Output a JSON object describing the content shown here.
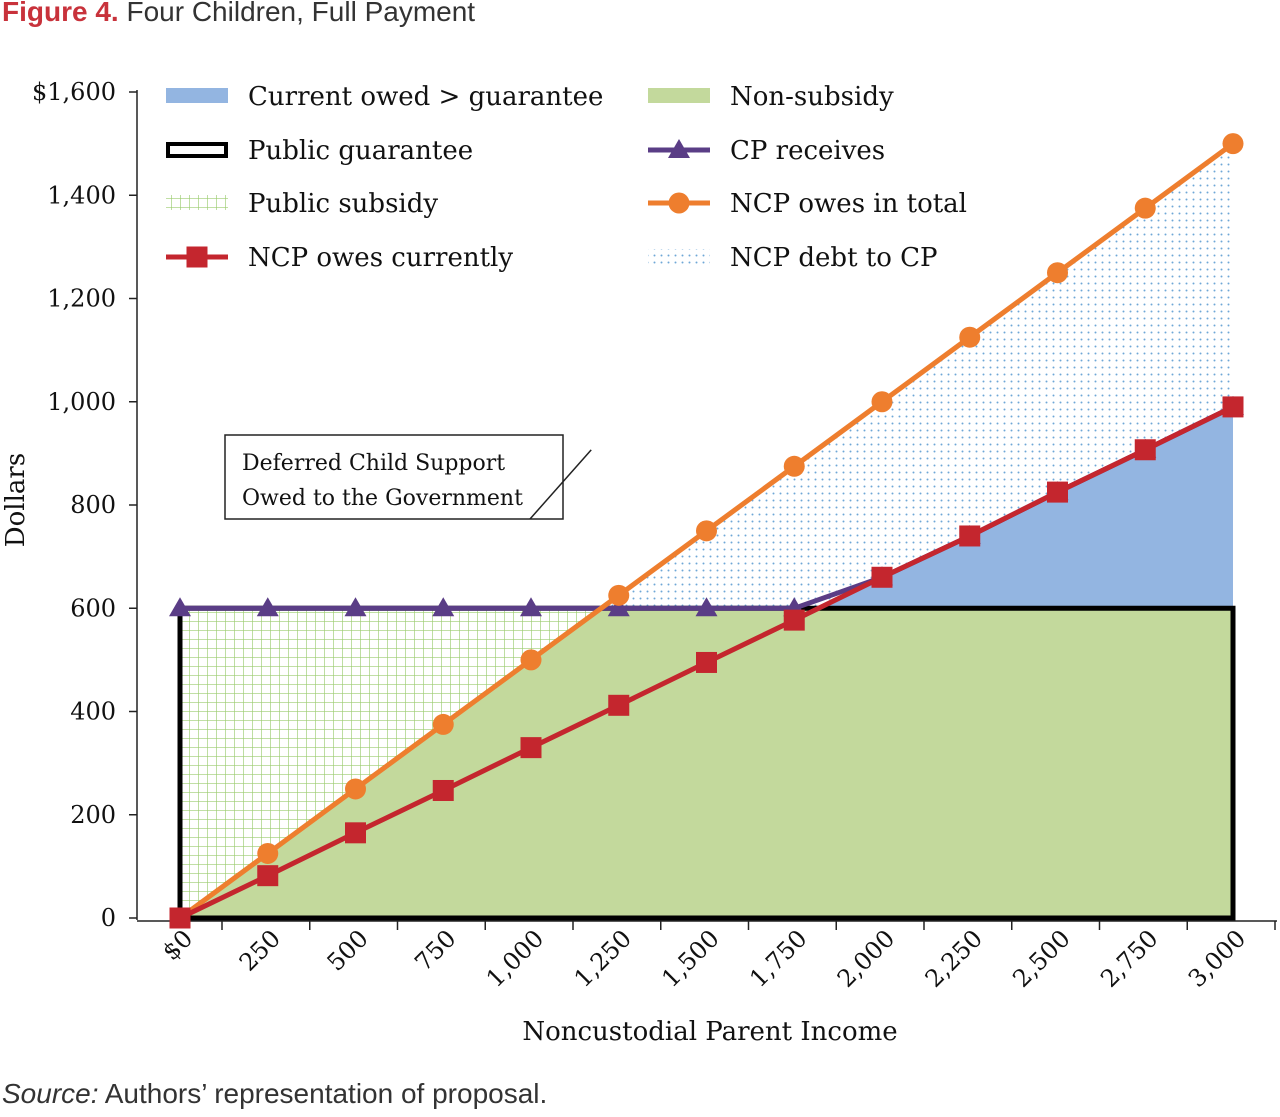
{
  "figure": {
    "label": "Figure 4.",
    "title": "Four Children, Full Payment",
    "source_label": "Source:",
    "source_text": "Authors’ representation of proposal."
  },
  "colors": {
    "current_owed_fill": "#93b5e1",
    "non_subsidy_fill": "#c3d99c",
    "subsidy_grid": "#9ccc6f",
    "debt_dots": "#6fa7d6",
    "cp_receives": "#5a3d86",
    "ncp_total": "#ee7e2e",
    "ncp_current": "#c4262e",
    "guarantee_outline": "#000000"
  },
  "chart_data": {
    "type": "line",
    "xlabel": "Noncustodial Parent Income",
    "ylabel": "Dollars",
    "xlim": [
      0,
      3000
    ],
    "ylim": [
      0,
      1600
    ],
    "x_ticks": [
      {
        "value": 0,
        "label": "$0"
      },
      {
        "value": 250,
        "label": "250"
      },
      {
        "value": 500,
        "label": "500"
      },
      {
        "value": 750,
        "label": "750"
      },
      {
        "value": 1000,
        "label": "1,000"
      },
      {
        "value": 1250,
        "label": "1,250"
      },
      {
        "value": 1500,
        "label": "1,500"
      },
      {
        "value": 1750,
        "label": "1,750"
      },
      {
        "value": 2000,
        "label": "2,000"
      },
      {
        "value": 2250,
        "label": "2,250"
      },
      {
        "value": 2500,
        "label": "2,500"
      },
      {
        "value": 2750,
        "label": "2,750"
      },
      {
        "value": 3000,
        "label": "3,000"
      }
    ],
    "y_ticks": [
      {
        "value": 0,
        "label": "0"
      },
      {
        "value": 200,
        "label": "200"
      },
      {
        "value": 400,
        "label": "400"
      },
      {
        "value": 600,
        "label": "600"
      },
      {
        "value": 800,
        "label": "800"
      },
      {
        "value": 1000,
        "label": "1,000"
      },
      {
        "value": 1200,
        "label": "1,200"
      },
      {
        "value": 1400,
        "label": "1,400"
      },
      {
        "value": 1600,
        "label": "$1,600"
      }
    ],
    "x": [
      0,
      250,
      500,
      750,
      1000,
      1250,
      1500,
      1750,
      2000,
      2250,
      2500,
      2750,
      3000
    ],
    "guarantee": 600,
    "series": [
      {
        "name": "CP receives",
        "key": "cp_receives",
        "marker": "triangle",
        "values": [
          600,
          600,
          600,
          600,
          600,
          600,
          600,
          600,
          660,
          740,
          825,
          907,
          990
        ]
      },
      {
        "name": "NCP owes in total",
        "key": "ncp_total",
        "marker": "circle",
        "values": [
          0,
          125,
          250,
          375,
          500,
          625,
          750,
          875,
          1000,
          1125,
          1250,
          1375,
          1500
        ]
      },
      {
        "name": "NCP owes currently",
        "key": "ncp_current",
        "marker": "square",
        "values": [
          0,
          82,
          165,
          247,
          330,
          412,
          495,
          577,
          660,
          740,
          825,
          907,
          990
        ]
      }
    ],
    "legend": [
      {
        "key": "current_owed",
        "label": "Current owed > guarantee",
        "swatch": "fill-blue"
      },
      {
        "key": "non_subsidy",
        "label": "Non-subsidy",
        "swatch": "fill-green"
      },
      {
        "key": "public_guarantee",
        "label": "Public guarantee",
        "swatch": "outline"
      },
      {
        "key": "cp_receives",
        "label": "CP receives",
        "swatch": "line-triangle"
      },
      {
        "key": "public_subsidy",
        "label": "Public subsidy",
        "swatch": "grid"
      },
      {
        "key": "ncp_total",
        "label": "NCP owes in total",
        "swatch": "line-circle"
      },
      {
        "key": "ncp_current",
        "label": "NCP owes currently",
        "swatch": "line-square"
      },
      {
        "key": "ncp_debt",
        "label": "NCP debt to CP",
        "swatch": "dots"
      }
    ],
    "legend_placement": "top",
    "annotation": {
      "lines": [
        "Deferred Child Support",
        "Owed to the Government"
      ],
      "points_to": {
        "x": 1200,
        "y": 500
      }
    },
    "grid": false
  }
}
